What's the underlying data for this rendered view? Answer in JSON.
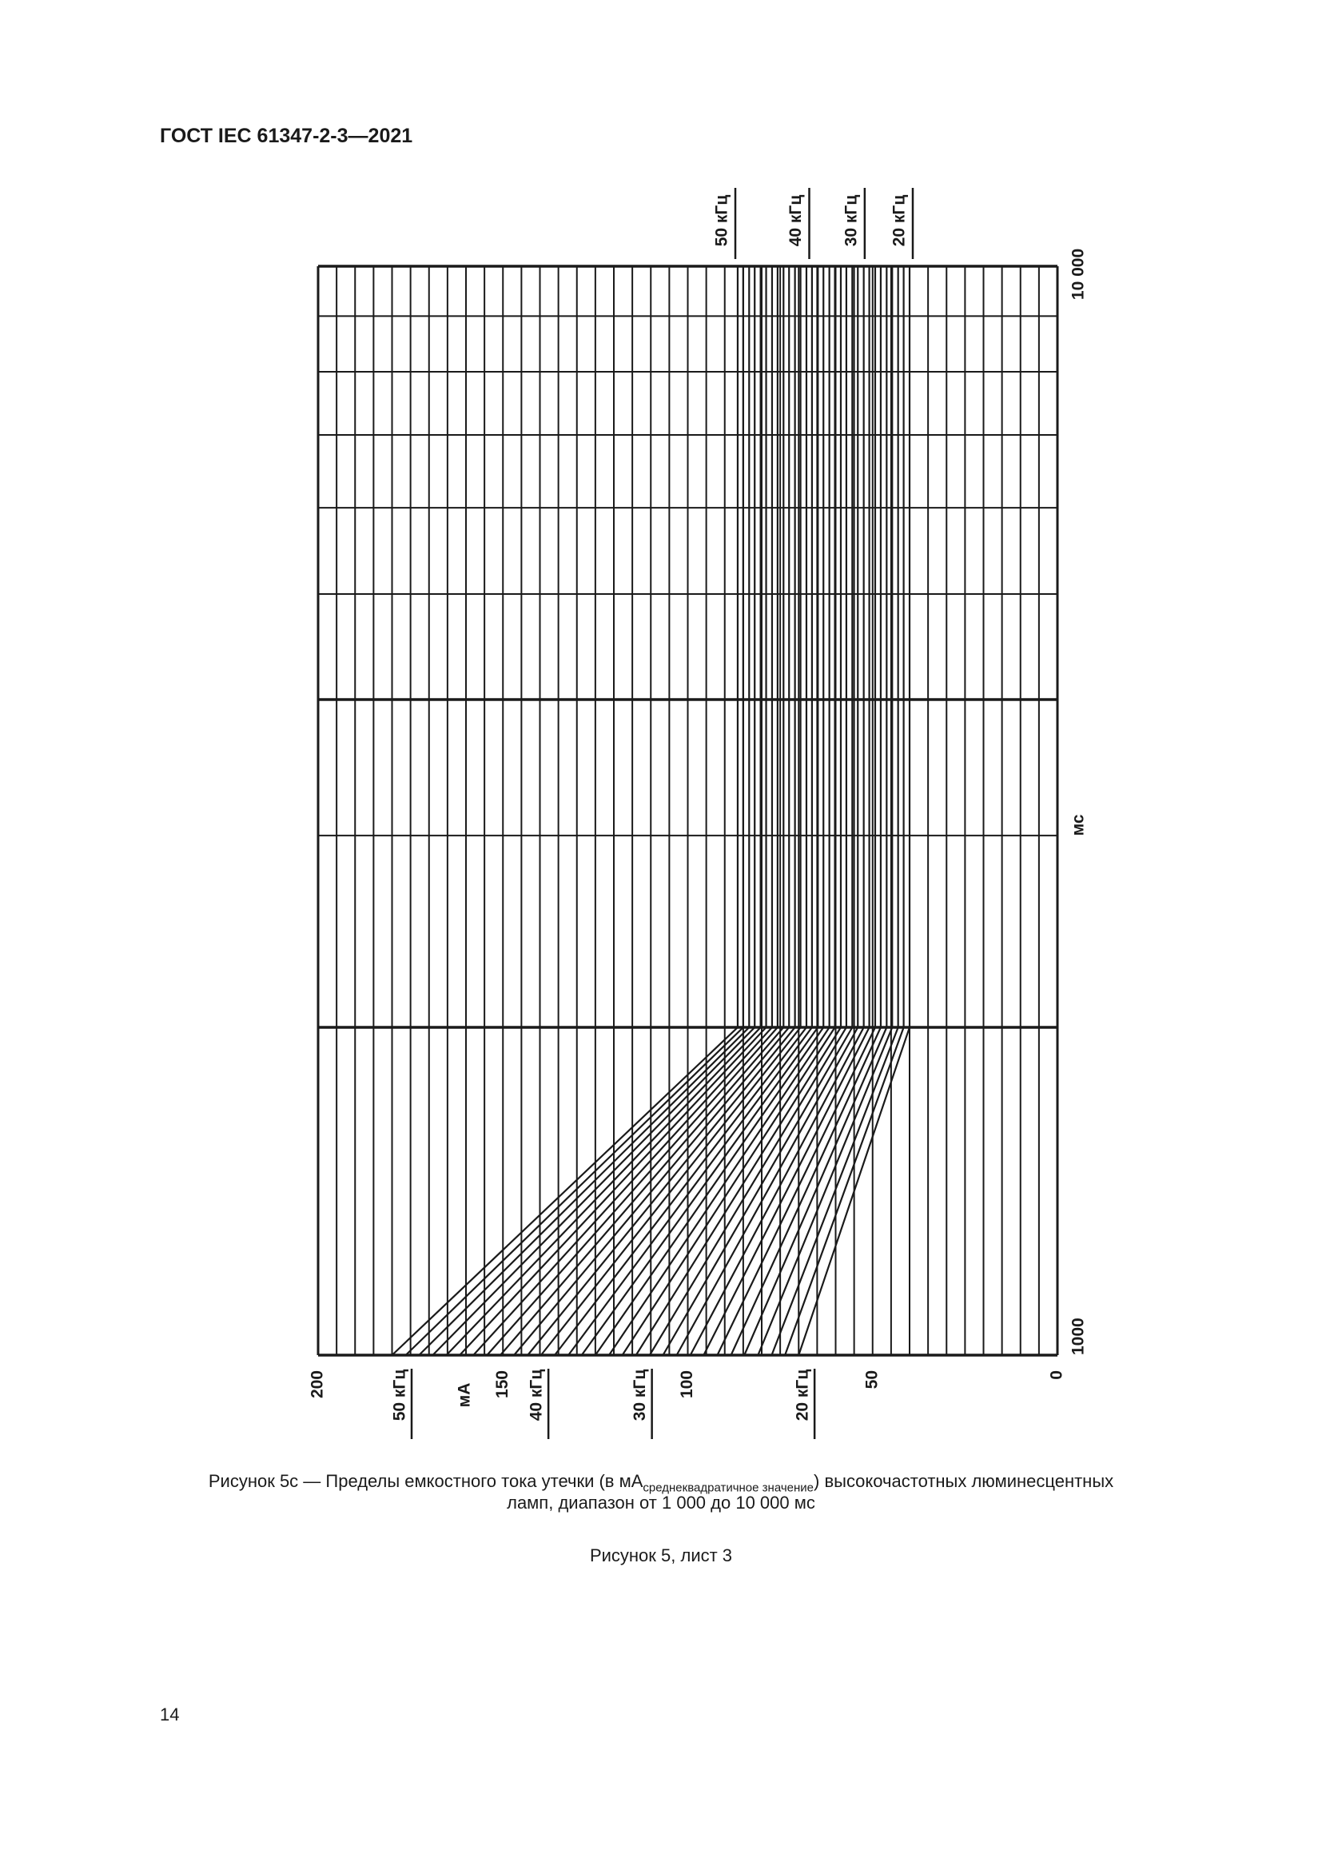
{
  "header": {
    "doc_id": "ГОСТ IEC 61347-2-3—2021"
  },
  "caption": {
    "line1_prefix": "Рисунок 5с — Пределы емкостного тока утечки (в мА",
    "line1_sub": "среднеквадратичное значение",
    "line1_suffix": ") высокочастотных люминесцентных",
    "line2": "ламп, диапазон от 1 000 до 10 000 мс",
    "sheet": "Рисунок 5, лист 3"
  },
  "page_number": "14",
  "chart_data": {
    "type": "line",
    "orientation": "rotated 90°: current axis horizontal (decreasing to the right), time axis vertical",
    "current_axis": {
      "label": "мА",
      "range": [
        0,
        200
      ],
      "ticks": [
        "200",
        "150",
        "100",
        "50",
        "0"
      ],
      "tick_values": [
        200,
        150,
        100,
        50,
        0
      ],
      "grid_step": 5
    },
    "time_axis": {
      "label": "мс",
      "scale": "log",
      "range": [
        1000,
        10000
      ],
      "ticks": [
        "1000",
        "10 000"
      ],
      "tick_values": [
        1000,
        10000
      ],
      "grid": [
        1000,
        2000,
        3000,
        4000,
        5000,
        6000,
        7000,
        8000,
        9000,
        10000
      ]
    },
    "grid": true,
    "line_color": "#1a1a1a",
    "frequency_labels_bottom": [
      {
        "text": "50 кГц",
        "at_ma": 176
      },
      {
        "text": "40 кГц",
        "at_ma": 139
      },
      {
        "text": "30 кГц",
        "at_ma": 111
      },
      {
        "text": "20 кГц",
        "at_ma": 67
      }
    ],
    "frequency_labels_top": [
      {
        "text": "50 кГц",
        "at_ma": 88
      },
      {
        "text": "40 кГц",
        "at_ma": 68
      },
      {
        "text": "30 кГц",
        "at_ma": 53
      },
      {
        "text": "20 кГц",
        "at_ma": 40
      }
    ],
    "x": [
      1000,
      2000,
      10000
    ],
    "series": [
      {
        "khz": 20,
        "values": [
          70.0,
          40.0,
          40.0
        ]
      },
      {
        "khz": 21,
        "values": [
          73.7,
          41.6,
          41.6
        ]
      },
      {
        "khz": 22,
        "values": [
          77.3,
          43.1,
          43.1
        ]
      },
      {
        "khz": 23,
        "values": [
          81.0,
          44.7,
          44.7
        ]
      },
      {
        "khz": 24,
        "values": [
          84.7,
          46.2,
          46.2
        ]
      },
      {
        "khz": 25,
        "values": [
          88.3,
          47.8,
          47.8
        ]
      },
      {
        "khz": 26,
        "values": [
          92.0,
          49.3,
          49.3
        ]
      },
      {
        "khz": 27,
        "values": [
          95.7,
          50.9,
          50.9
        ]
      },
      {
        "khz": 28,
        "values": [
          99.3,
          52.4,
          52.4
        ]
      },
      {
        "khz": 29,
        "values": [
          103.0,
          54.0,
          54.0
        ]
      },
      {
        "khz": 30,
        "values": [
          106.7,
          55.5,
          55.5
        ]
      },
      {
        "khz": 31,
        "values": [
          110.3,
          57.1,
          57.1
        ]
      },
      {
        "khz": 32,
        "values": [
          114.0,
          58.6,
          58.6
        ]
      },
      {
        "khz": 33,
        "values": [
          117.7,
          60.2,
          60.2
        ]
      },
      {
        "khz": 34,
        "values": [
          121.3,
          61.7,
          61.7
        ]
      },
      {
        "khz": 35,
        "values": [
          125.0,
          63.3,
          63.3
        ]
      },
      {
        "khz": 36,
        "values": [
          128.7,
          64.8,
          64.8
        ]
      },
      {
        "khz": 37,
        "values": [
          132.3,
          66.4,
          66.4
        ]
      },
      {
        "khz": 38,
        "values": [
          136.0,
          67.9,
          67.9
        ]
      },
      {
        "khz": 39,
        "values": [
          139.7,
          69.5,
          69.5
        ]
      },
      {
        "khz": 40,
        "values": [
          143.3,
          71.0,
          71.0
        ]
      },
      {
        "khz": 41,
        "values": [
          147.0,
          72.6,
          72.6
        ]
      },
      {
        "khz": 42,
        "values": [
          150.7,
          74.1,
          74.1
        ]
      },
      {
        "khz": 43,
        "values": [
          154.3,
          75.7,
          75.7
        ]
      },
      {
        "khz": 44,
        "values": [
          158.0,
          77.2,
          77.2
        ]
      },
      {
        "khz": 45,
        "values": [
          161.7,
          78.8,
          78.8
        ]
      },
      {
        "khz": 46,
        "values": [
          165.3,
          80.3,
          80.3
        ]
      },
      {
        "khz": 47,
        "values": [
          169.0,
          81.9,
          81.9
        ]
      },
      {
        "khz": 48,
        "values": [
          172.7,
          83.4,
          83.4
        ]
      },
      {
        "khz": 49,
        "values": [
          176.3,
          85.0,
          85.0
        ]
      },
      {
        "khz": 50,
        "values": [
          180.0,
          86.5,
          86.5
        ]
      }
    ]
  }
}
